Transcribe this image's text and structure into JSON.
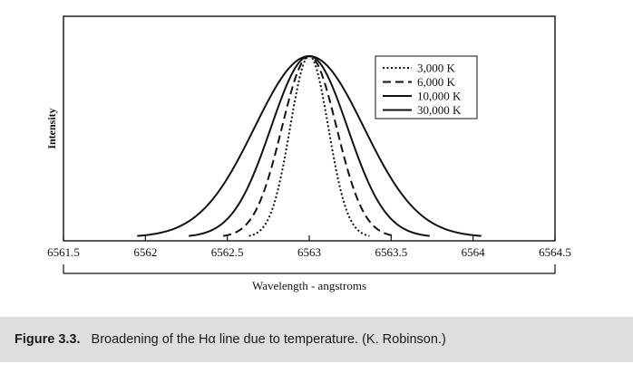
{
  "chart_data": {
    "type": "line",
    "xlabel": "Wavelength - angstroms",
    "ylabel": "Intensity",
    "xlim": [
      6561.5,
      6564.5
    ],
    "ylim": [
      0,
      1
    ],
    "x_ticks": [
      "6561.5",
      "6562",
      "6562.5",
      "6563",
      "6563.5",
      "6564",
      "6564.5"
    ],
    "center": 6563.0,
    "grid": false,
    "legend_position": "top-right",
    "series": [
      {
        "name": "3,000 K",
        "style": "dotted",
        "halfwidth_at_base": 0.35
      },
      {
        "name": "6,000 K",
        "style": "dashed",
        "halfwidth_at_base": 0.5
      },
      {
        "name": "10,000 K",
        "style": "solid",
        "halfwidth_at_base": 0.7
      },
      {
        "name": "30,000 K",
        "style": "solid",
        "halfwidth_at_base": 1.0
      }
    ]
  },
  "caption": {
    "label": "Figure 3.3.",
    "text": "Broadening of the Hα line due to temperature. (K. Robinson.)"
  }
}
